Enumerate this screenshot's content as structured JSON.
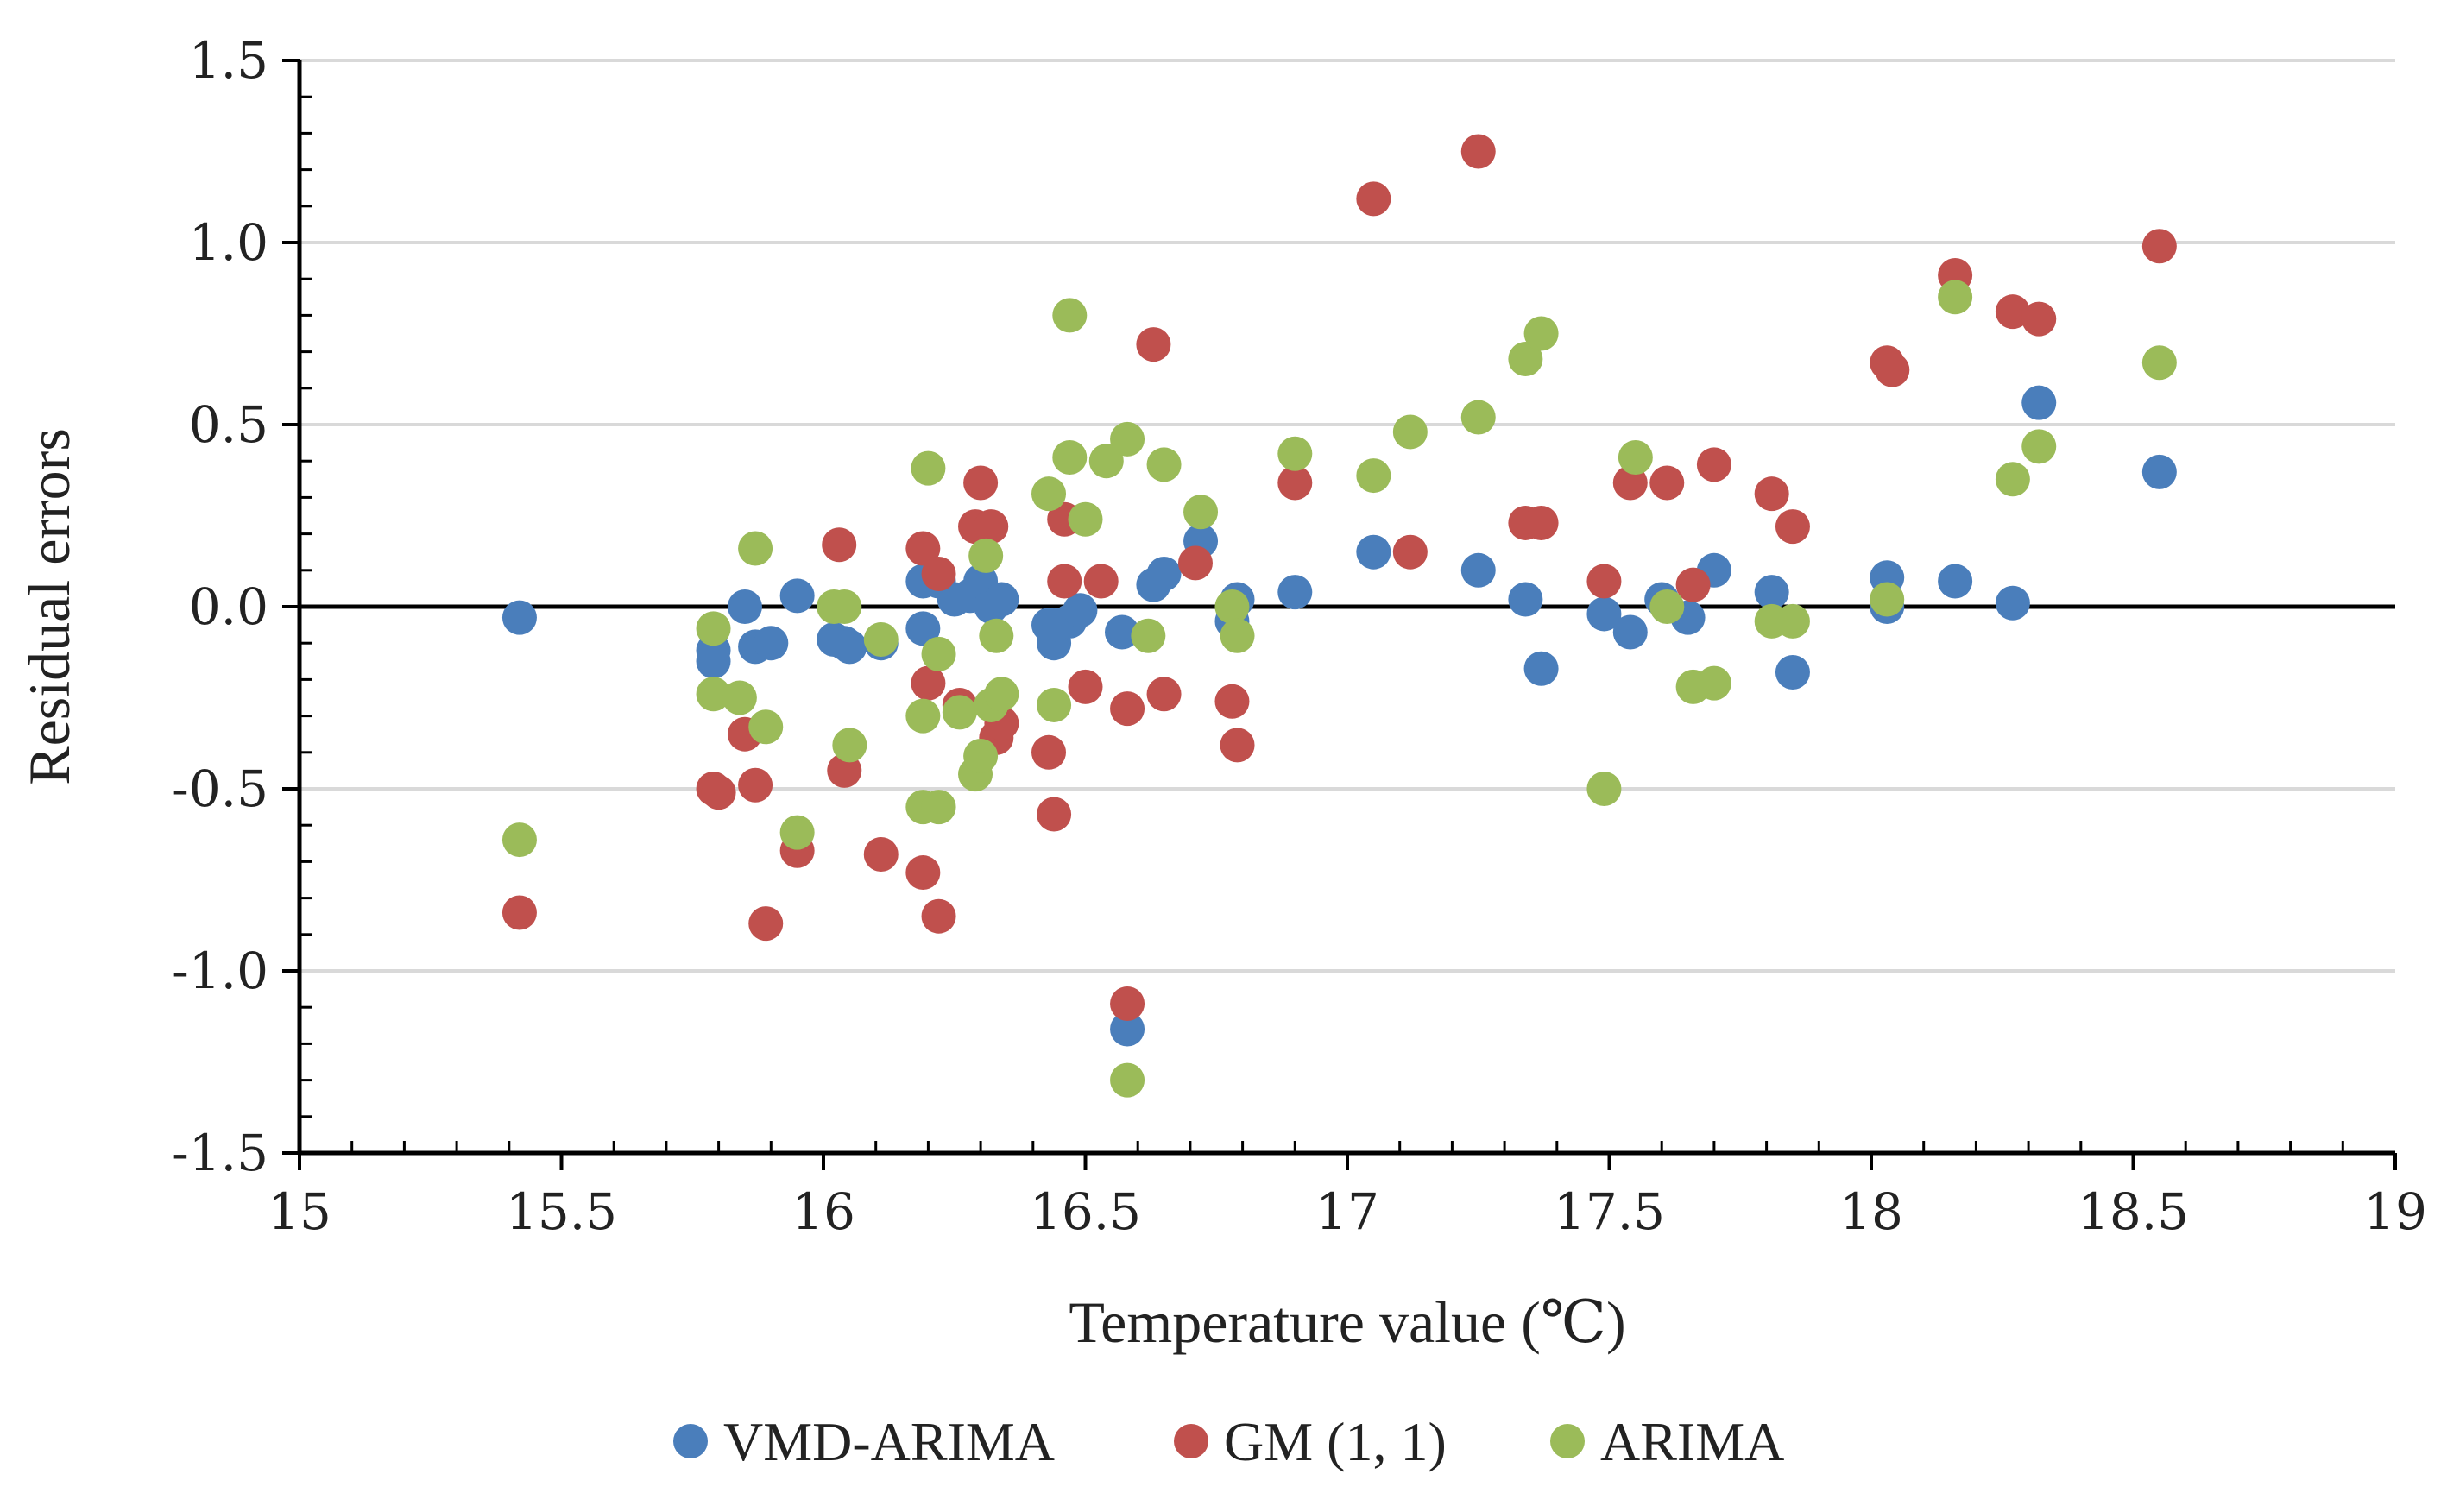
{
  "chart_data": {
    "type": "scatter",
    "title": "",
    "xlabel": "Temperature value (℃)",
    "ylabel": "Residual errors",
    "xlim": [
      15,
      19
    ],
    "ylim": [
      -1.5,
      1.5
    ],
    "x_ticks": [
      15,
      15.5,
      16,
      16.5,
      17,
      17.5,
      18,
      18.5,
      19
    ],
    "x_tick_labels": [
      "15",
      "15.5",
      "16",
      "16.5",
      "17",
      "17.5",
      "18",
      "18.5",
      "19"
    ],
    "y_ticks": [
      -1.5,
      -1.0,
      -0.5,
      0.0,
      0.5,
      1.0,
      1.5
    ],
    "y_tick_labels": [
      "-1.5",
      "-1.0",
      "-0.5",
      "0.0",
      "0.5",
      "1.0",
      "1.5"
    ],
    "grid": "horizontal",
    "zero_line": true,
    "legend_position": "bottom",
    "series": [
      {
        "name": "VMD-ARIMA",
        "color": "#4a7ebb",
        "points": [
          [
            15.42,
            -0.03
          ],
          [
            15.79,
            -0.12
          ],
          [
            15.79,
            -0.15
          ],
          [
            15.85,
            0.0
          ],
          [
            15.87,
            -0.11
          ],
          [
            15.9,
            -0.1
          ],
          [
            15.95,
            0.03
          ],
          [
            16.02,
            -0.09
          ],
          [
            16.04,
            -0.1
          ],
          [
            16.05,
            -0.11
          ],
          [
            16.11,
            -0.1
          ],
          [
            16.19,
            0.07
          ],
          [
            16.19,
            -0.06
          ],
          [
            16.22,
            0.07
          ],
          [
            16.25,
            0.02
          ],
          [
            16.28,
            0.03
          ],
          [
            16.3,
            0.07
          ],
          [
            16.32,
            0.0
          ],
          [
            16.34,
            0.02
          ],
          [
            16.43,
            -0.05
          ],
          [
            16.44,
            -0.1
          ],
          [
            16.45,
            -0.05
          ],
          [
            16.47,
            -0.04
          ],
          [
            16.49,
            -0.01
          ],
          [
            16.57,
            -0.07
          ],
          [
            16.58,
            -1.16
          ],
          [
            16.63,
            0.06
          ],
          [
            16.65,
            0.09
          ],
          [
            16.72,
            0.18
          ],
          [
            16.78,
            -0.04
          ],
          [
            16.79,
            0.02
          ],
          [
            16.9,
            0.04
          ],
          [
            17.05,
            0.15
          ],
          [
            17.25,
            0.1
          ],
          [
            17.34,
            0.02
          ],
          [
            17.37,
            -0.17
          ],
          [
            17.49,
            -0.02
          ],
          [
            17.54,
            -0.07
          ],
          [
            17.6,
            0.02
          ],
          [
            17.65,
            -0.03
          ],
          [
            17.7,
            0.1
          ],
          [
            17.81,
            0.04
          ],
          [
            17.85,
            -0.18
          ],
          [
            18.03,
            0.08
          ],
          [
            18.03,
            0.0
          ],
          [
            18.16,
            0.07
          ],
          [
            18.27,
            0.01
          ],
          [
            18.32,
            0.56
          ],
          [
            18.55,
            0.37
          ]
        ]
      },
      {
        "name": "GM (1, 1)",
        "color": "#c0504d",
        "points": [
          [
            15.42,
            -0.84
          ],
          [
            15.79,
            -0.5
          ],
          [
            15.8,
            -0.51
          ],
          [
            15.85,
            -0.35
          ],
          [
            15.87,
            -0.49
          ],
          [
            15.89,
            -0.87
          ],
          [
            15.95,
            -0.67
          ],
          [
            16.03,
            0.17
          ],
          [
            16.04,
            -0.45
          ],
          [
            16.11,
            -0.68
          ],
          [
            16.19,
            0.16
          ],
          [
            16.19,
            -0.73
          ],
          [
            16.2,
            -0.21
          ],
          [
            16.22,
            -0.85
          ],
          [
            16.22,
            0.09
          ],
          [
            16.26,
            -0.27
          ],
          [
            16.29,
            0.22
          ],
          [
            16.3,
            0.34
          ],
          [
            16.32,
            0.22
          ],
          [
            16.33,
            -0.36
          ],
          [
            16.34,
            -0.32
          ],
          [
            16.43,
            -0.4
          ],
          [
            16.44,
            -0.57
          ],
          [
            16.46,
            0.07
          ],
          [
            16.46,
            0.24
          ],
          [
            16.5,
            -0.22
          ],
          [
            16.53,
            0.07
          ],
          [
            16.58,
            -0.28
          ],
          [
            16.58,
            -1.09
          ],
          [
            16.63,
            0.72
          ],
          [
            16.65,
            -0.24
          ],
          [
            16.71,
            0.12
          ],
          [
            16.78,
            -0.26
          ],
          [
            16.79,
            -0.38
          ],
          [
            16.9,
            0.34
          ],
          [
            17.05,
            1.12
          ],
          [
            17.12,
            0.15
          ],
          [
            17.25,
            1.25
          ],
          [
            17.34,
            0.23
          ],
          [
            17.37,
            0.23
          ],
          [
            17.49,
            0.07
          ],
          [
            17.54,
            0.34
          ],
          [
            17.61,
            0.34
          ],
          [
            17.66,
            0.06
          ],
          [
            17.7,
            0.39
          ],
          [
            17.81,
            0.31
          ],
          [
            17.85,
            0.22
          ],
          [
            18.03,
            0.67
          ],
          [
            18.04,
            0.65
          ],
          [
            18.16,
            0.91
          ],
          [
            18.27,
            0.81
          ],
          [
            18.32,
            0.79
          ],
          [
            18.55,
            0.99
          ]
        ]
      },
      {
        "name": "ARIMA",
        "color": "#9bbb59",
        "points": [
          [
            15.42,
            -0.64
          ],
          [
            15.79,
            -0.06
          ],
          [
            15.79,
            -0.24
          ],
          [
            15.84,
            -0.25
          ],
          [
            15.87,
            0.16
          ],
          [
            15.89,
            -0.33
          ],
          [
            15.95,
            -0.62
          ],
          [
            16.02,
            0.0
          ],
          [
            16.04,
            0.0
          ],
          [
            16.05,
            -0.38
          ],
          [
            16.11,
            -0.09
          ],
          [
            16.19,
            -0.3
          ],
          [
            16.19,
            -0.55
          ],
          [
            16.2,
            0.38
          ],
          [
            16.22,
            -0.13
          ],
          [
            16.22,
            -0.55
          ],
          [
            16.26,
            -0.29
          ],
          [
            16.29,
            -0.46
          ],
          [
            16.3,
            -0.41
          ],
          [
            16.31,
            0.14
          ],
          [
            16.32,
            -0.27
          ],
          [
            16.33,
            -0.08
          ],
          [
            16.34,
            -0.24
          ],
          [
            16.43,
            0.31
          ],
          [
            16.44,
            -0.27
          ],
          [
            16.47,
            0.8
          ],
          [
            16.47,
            0.41
          ],
          [
            16.5,
            0.24
          ],
          [
            16.54,
            0.4
          ],
          [
            16.58,
            0.46
          ],
          [
            16.58,
            -1.3
          ],
          [
            16.62,
            -0.08
          ],
          [
            16.65,
            0.39
          ],
          [
            16.72,
            0.26
          ],
          [
            16.78,
            0.0
          ],
          [
            16.79,
            -0.08
          ],
          [
            16.9,
            0.42
          ],
          [
            17.05,
            0.36
          ],
          [
            17.12,
            0.48
          ],
          [
            17.25,
            0.52
          ],
          [
            17.34,
            0.68
          ],
          [
            17.37,
            0.75
          ],
          [
            17.49,
            -0.5
          ],
          [
            17.55,
            0.41
          ],
          [
            17.61,
            0.0
          ],
          [
            17.66,
            -0.22
          ],
          [
            17.7,
            -0.21
          ],
          [
            17.81,
            -0.04
          ],
          [
            17.85,
            -0.04
          ],
          [
            18.03,
            0.02
          ],
          [
            18.16,
            0.85
          ],
          [
            18.27,
            0.35
          ],
          [
            18.32,
            0.44
          ],
          [
            18.55,
            0.67
          ]
        ]
      }
    ]
  }
}
